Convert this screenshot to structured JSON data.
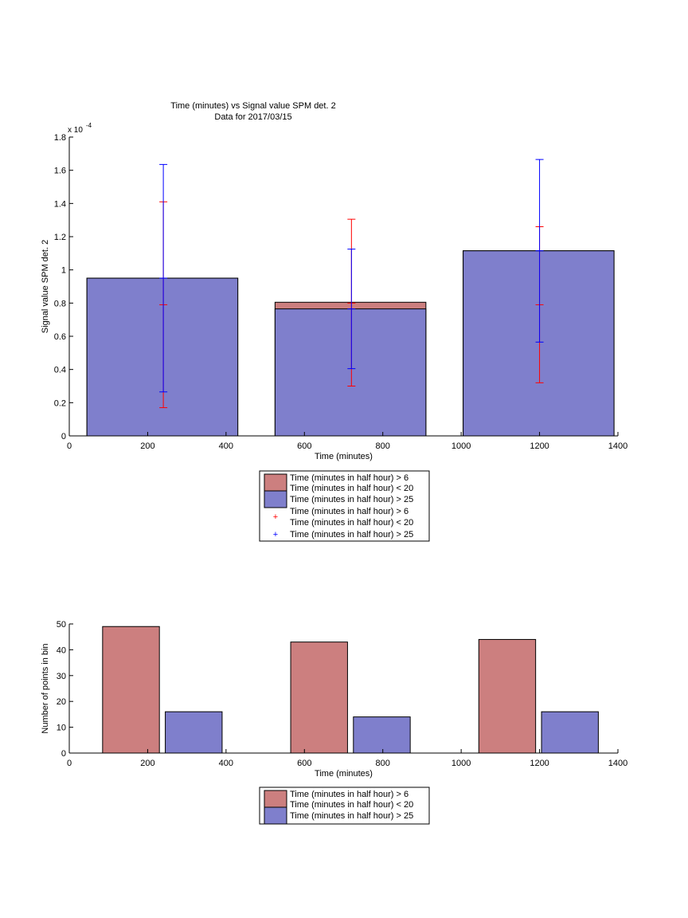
{
  "chart_data": [
    {
      "type": "bar",
      "title": "Time (minutes) vs Signal value SPM det. 2",
      "subtitle": "Data for 2017/03/15",
      "xlabel": "Time (minutes)",
      "ylabel": "Signal value SPM det. 2",
      "y_exponent_label": "x 10",
      "y_exponent_power": "-4",
      "xlim": [
        0,
        1400
      ],
      "ylim": [
        0,
        1.8
      ],
      "x_ticks": [
        "0",
        "200",
        "400",
        "600",
        "800",
        "1000",
        "1200",
        "1400"
      ],
      "y_ticks": [
        "0",
        "0.2",
        "0.4",
        "0.6",
        "0.8",
        "1",
        "1.2",
        "1.4",
        "1.6",
        "1.8"
      ],
      "grid": false,
      "legend_position": "bottom-outside",
      "bins": [
        {
          "x_start": 45,
          "x_end": 430,
          "center": 240
        },
        {
          "x_start": 525,
          "x_end": 910,
          "center": 720
        },
        {
          "x_start": 1005,
          "x_end": 1390,
          "center": 1200
        }
      ],
      "series": [
        {
          "name": "Time (minutes in half hour) > 6\nTime (minutes in half hour) < 20",
          "color": "#cc7f7f",
          "values": [
            0.95,
            0.805,
            1.115
          ]
        },
        {
          "name": "Time (minutes in half hour) > 25",
          "color": "#7f7fcc",
          "values": [
            0.95,
            0.765,
            1.115
          ]
        }
      ],
      "error_bars": [
        {
          "name": "Time (minutes in half hour) > 6\nTime (minutes in half hour) < 20",
          "color": "#ff0000",
          "symbol": "+",
          "center": [
            0.79,
            0.8,
            0.79
          ],
          "lower": [
            0.17,
            0.3,
            0.32
          ],
          "upper": [
            1.41,
            1.305,
            1.26
          ]
        },
        {
          "name": "Time (minutes in half hour) > 25",
          "color": "#0000ff",
          "symbol": "+",
          "center": [
            0.95,
            0.765,
            1.115
          ],
          "lower": [
            0.265,
            0.405,
            0.565
          ],
          "upper": [
            1.635,
            1.125,
            1.665
          ]
        }
      ]
    },
    {
      "type": "bar",
      "xlabel": "Time (minutes)",
      "ylabel": "Number of points in bin",
      "xlim": [
        0,
        1400
      ],
      "ylim": [
        0,
        50
      ],
      "x_ticks": [
        "0",
        "200",
        "400",
        "600",
        "800",
        "1000",
        "1200",
        "1400"
      ],
      "y_ticks": [
        "0",
        "10",
        "20",
        "30",
        "40",
        "50"
      ],
      "grid": false,
      "legend_position": "bottom-outside",
      "series": [
        {
          "name": "Time (minutes in half hour) > 6\nTime (minutes in half hour) < 20",
          "color": "#cc7f7f",
          "x_start": [
            85,
            565,
            1045
          ],
          "x_end": [
            230,
            710,
            1190
          ],
          "values": [
            49,
            43,
            44
          ]
        },
        {
          "name": "Time (minutes in half hour) > 25",
          "color": "#7f7fcc",
          "x_start": [
            245,
            725,
            1205
          ],
          "x_end": [
            390,
            870,
            1350
          ],
          "values": [
            16,
            14,
            16
          ]
        }
      ]
    }
  ]
}
